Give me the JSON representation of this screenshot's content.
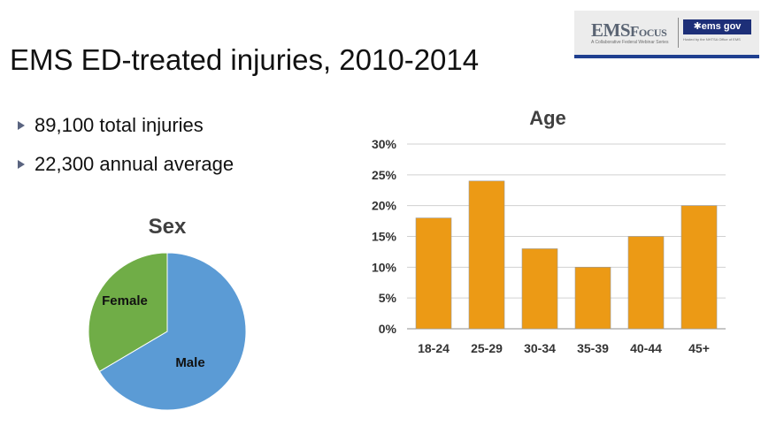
{
  "slide": {
    "title": "EMS ED-treated injuries, 2010-2014",
    "bullets": [
      "89,100 total injuries",
      "22,300 annual average"
    ]
  },
  "logo": {
    "ems": "EMS",
    "focus": "Focus",
    "tagline": "A Collaborative Federal Webinar Series",
    "gov": "✱ems gov",
    "gov_tagline": "Hosted by the NHTSA Office of EMS"
  },
  "colors": {
    "bar": "#ec9a15",
    "male": "#5b9bd5",
    "female": "#70ad47",
    "bullet": "#5a6480",
    "logo_blue": "#1d2f78"
  },
  "chart_data": [
    {
      "type": "pie",
      "title": "Sex",
      "slices": [
        {
          "label": "Male",
          "value": 0.665,
          "color": "#5b9bd5"
        },
        {
          "label": "Female",
          "value": 0.335,
          "color": "#70ad47"
        }
      ],
      "legend": "none"
    },
    {
      "type": "bar",
      "title": "Age",
      "categories": [
        "18-24",
        "25-29",
        "30-34",
        "35-39",
        "40-44",
        "45+"
      ],
      "values": [
        18,
        24,
        13,
        10,
        15,
        20
      ],
      "yticks": [
        "0%",
        "5%",
        "10%",
        "15%",
        "20%",
        "25%",
        "30%"
      ],
      "ylim": [
        0,
        30
      ],
      "ytick_step": 5,
      "grid": true,
      "legend": "none"
    }
  ]
}
